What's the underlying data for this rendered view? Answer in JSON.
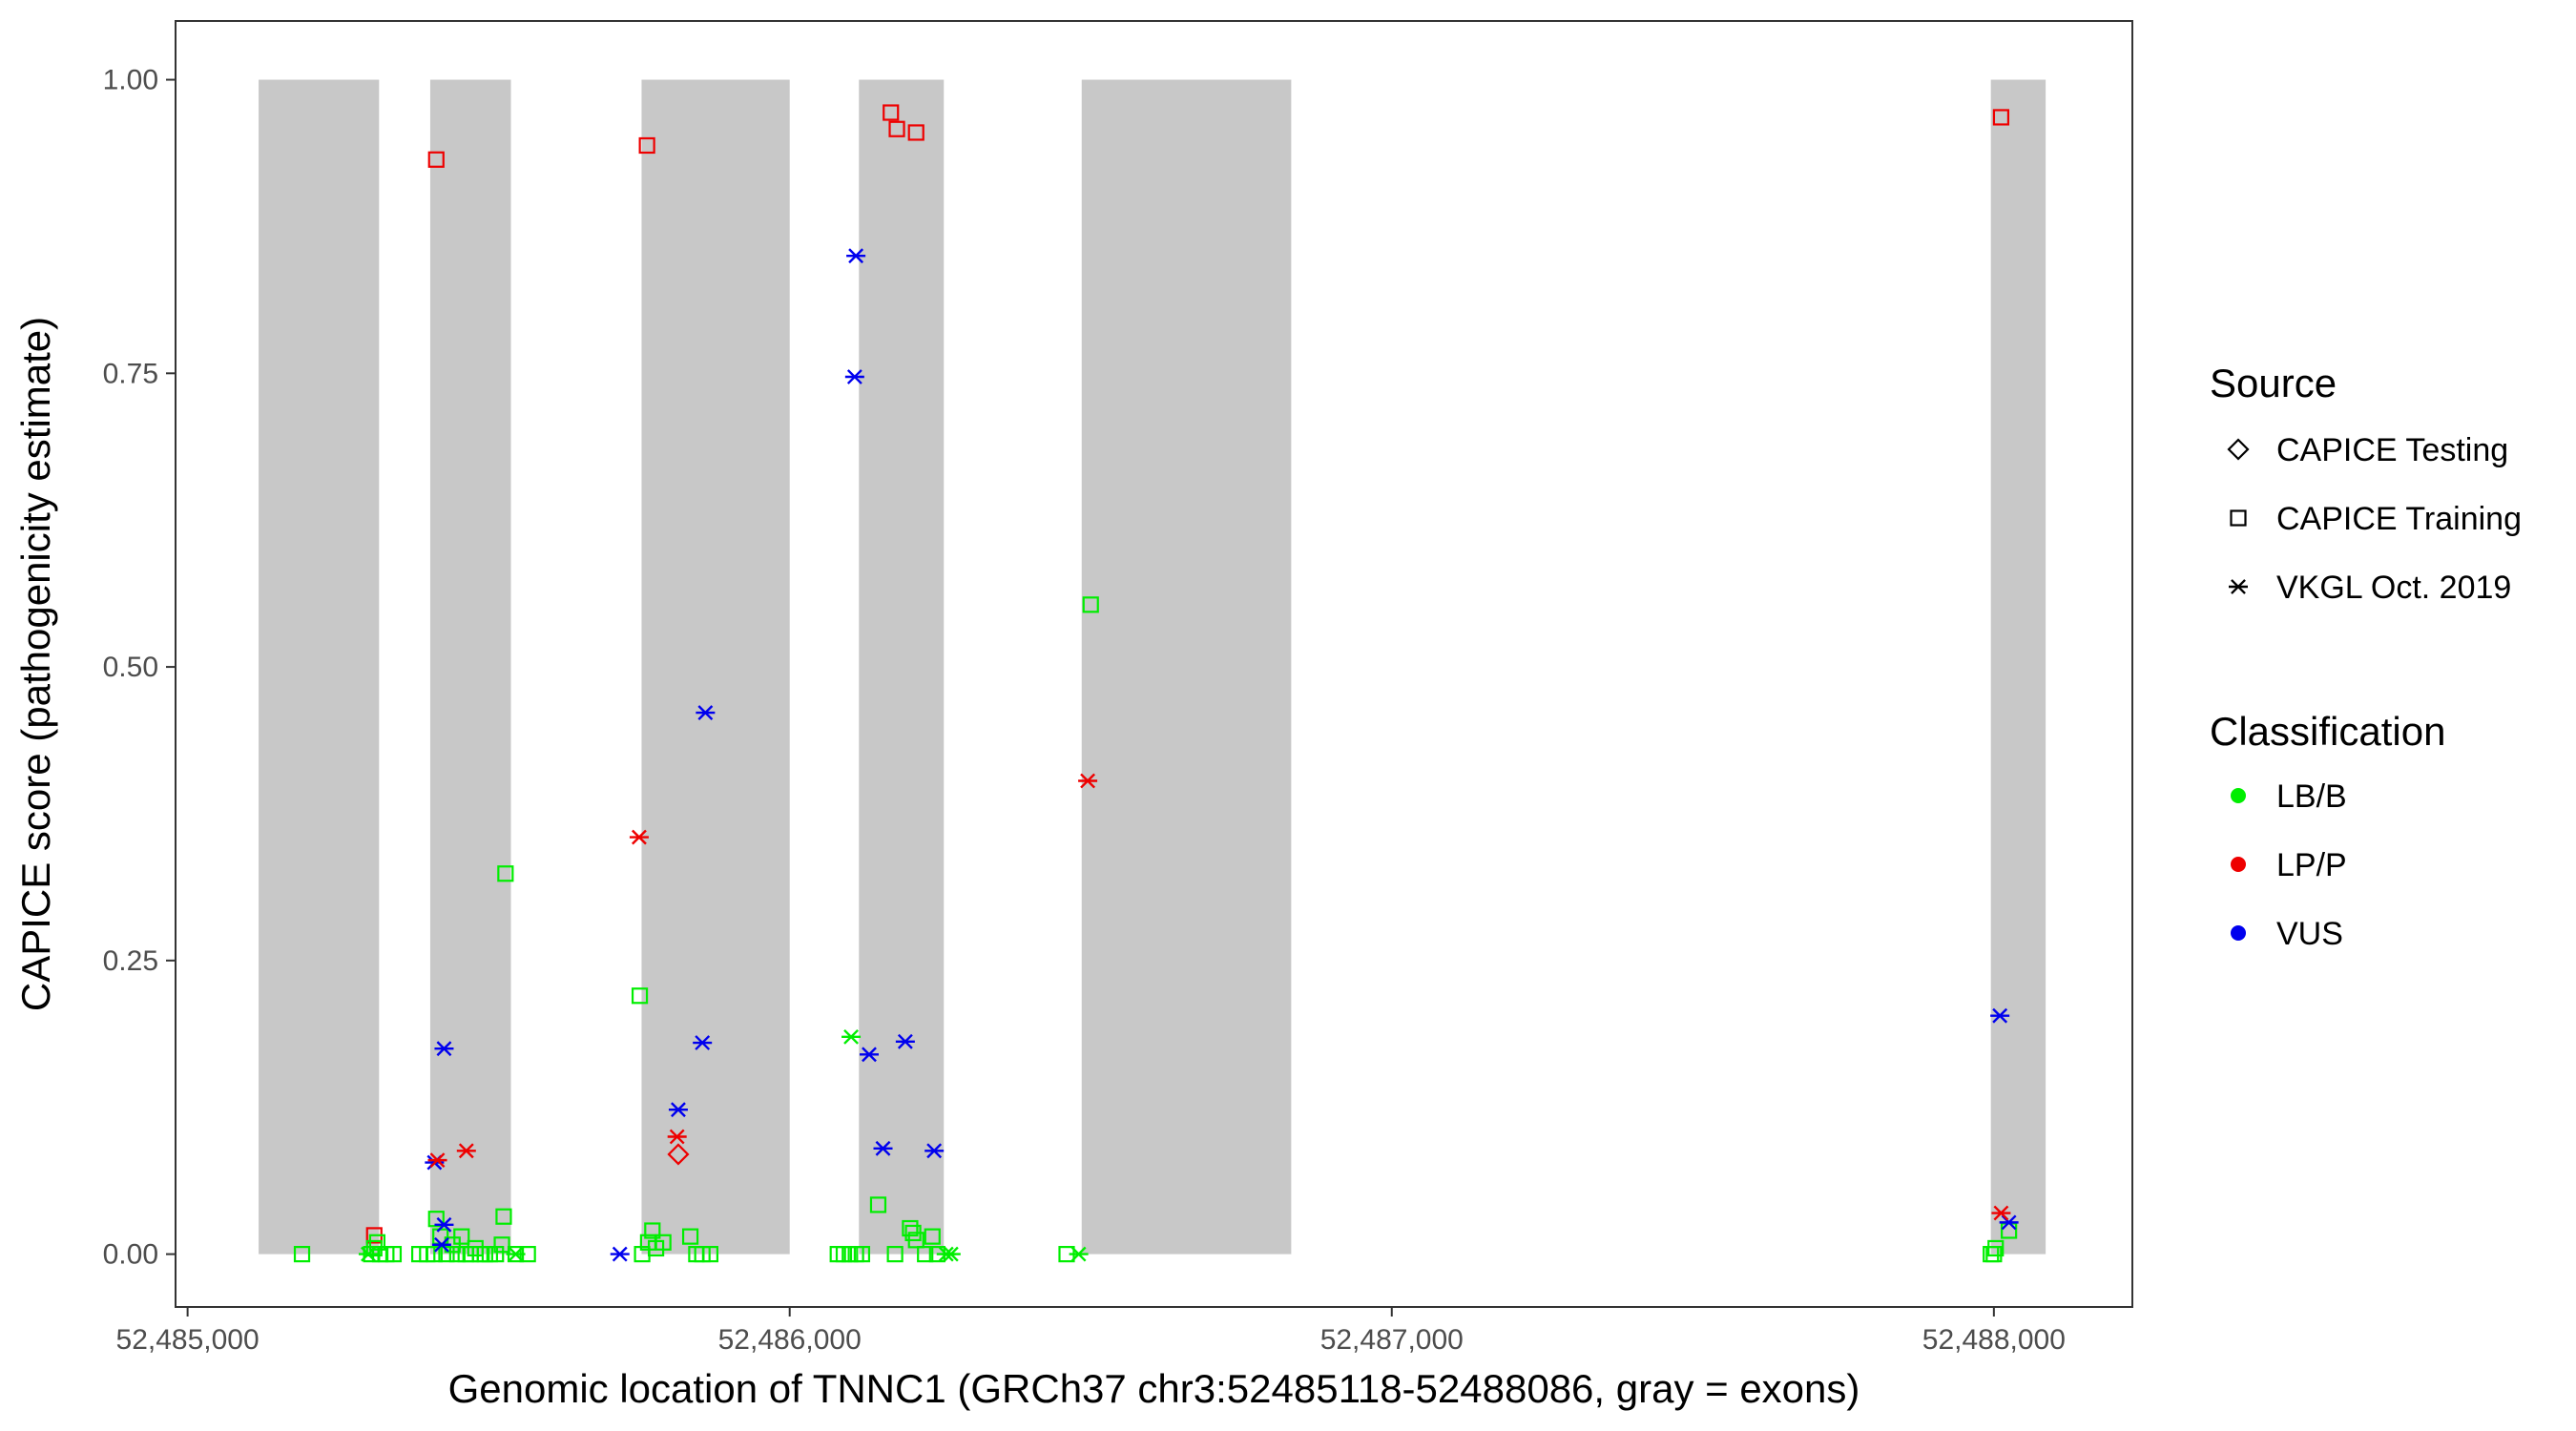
{
  "chart_data": {
    "type": "scatter",
    "title": "",
    "xlabel": "Genomic location of TNNC1 (GRCh37 chr3:52485118-52488086, gray = exons)",
    "ylabel": "CAPICE score (pathogenicity estimate)",
    "xlim": [
      52484980,
      52488230
    ],
    "ylim": [
      -0.045,
      1.05
    ],
    "x_ticks": [
      52485000,
      52486000,
      52487000,
      52488000
    ],
    "x_tick_labels": [
      "52,485,000",
      "52,486,000",
      "52,487,000",
      "52,488,000"
    ],
    "y_ticks": [
      0,
      0.25,
      0.5,
      0.75,
      1
    ],
    "y_tick_labels": [
      "0.00",
      "0.25",
      "0.50",
      "0.75",
      "1.00"
    ],
    "grid": false,
    "exons": [
      {
        "start": 52485118,
        "end": 52485318
      },
      {
        "start": 52485403,
        "end": 52485537
      },
      {
        "start": 52485754,
        "end": 52486000
      },
      {
        "start": 52486115,
        "end": 52486256
      },
      {
        "start": 52486485,
        "end": 52486833
      },
      {
        "start": 52487995,
        "end": 52488086
      }
    ],
    "exon_color": "#c8c8c8",
    "legend": {
      "position": "right",
      "source_title": "Source",
      "source_items": [
        {
          "label": "CAPICE Testing",
          "shape": "diamond"
        },
        {
          "label": "CAPICE Training",
          "shape": "square"
        },
        {
          "label": "VKGL Oct. 2019",
          "shape": "asterisk"
        }
      ],
      "class_title": "Classification",
      "class_items": [
        {
          "label": "LB/B",
          "color": "#00ee00"
        },
        {
          "label": "LP/P",
          "color": "#ee0000"
        },
        {
          "label": "VUS",
          "color": "#0000ee"
        }
      ]
    },
    "series": [
      {
        "source": "CAPICE Training",
        "classification": "LP/P",
        "points": [
          [
            52485413,
            0.932
          ],
          [
            52485763,
            0.944
          ],
          [
            52486168,
            0.972
          ],
          [
            52486178,
            0.958
          ],
          [
            52486210,
            0.955
          ],
          [
            52488012,
            0.968
          ],
          [
            52485310,
            0.016
          ]
        ]
      },
      {
        "source": "CAPICE Training",
        "classification": "LB/B",
        "points": [
          [
            52486500,
            0.553
          ],
          [
            52485528,
            0.324
          ],
          [
            52485751,
            0.22
          ],
          [
            52485525,
            0.032
          ],
          [
            52485413,
            0.03
          ],
          [
            52486147,
            0.042
          ],
          [
            52485190,
            0.0
          ],
          [
            52485305,
            0.0
          ],
          [
            52485310,
            0.005
          ],
          [
            52485315,
            0.01
          ],
          [
            52485320,
            0.0
          ],
          [
            52485330,
            0.0
          ],
          [
            52485342,
            0.0
          ],
          [
            52485385,
            0.0
          ],
          [
            52485398,
            0.0
          ],
          [
            52485410,
            0.0
          ],
          [
            52485420,
            0.015
          ],
          [
            52485430,
            0.0
          ],
          [
            52485440,
            0.008
          ],
          [
            52485448,
            0.0
          ],
          [
            52485455,
            0.015
          ],
          [
            52485462,
            0.0
          ],
          [
            52485470,
            0.0
          ],
          [
            52485478,
            0.005
          ],
          [
            52485486,
            0.0
          ],
          [
            52485494,
            0.0
          ],
          [
            52485502,
            0.0
          ],
          [
            52485512,
            0.0
          ],
          [
            52485522,
            0.008
          ],
          [
            52485545,
            0.0
          ],
          [
            52485565,
            0.0
          ],
          [
            52485755,
            0.0
          ],
          [
            52485765,
            0.01
          ],
          [
            52485772,
            0.02
          ],
          [
            52485778,
            0.005
          ],
          [
            52485790,
            0.01
          ],
          [
            52485835,
            0.015
          ],
          [
            52485845,
            0.0
          ],
          [
            52485855,
            0.0
          ],
          [
            52485868,
            0.0
          ],
          [
            52486080,
            0.0
          ],
          [
            52486090,
            0.0
          ],
          [
            52486100,
            0.0
          ],
          [
            52486110,
            0.0
          ],
          [
            52486120,
            0.0
          ],
          [
            52486175,
            0.0
          ],
          [
            52486200,
            0.022
          ],
          [
            52486205,
            0.018
          ],
          [
            52486210,
            0.012
          ],
          [
            52486225,
            0.0
          ],
          [
            52486237,
            0.015
          ],
          [
            52486245,
            0.0
          ],
          [
            52486460,
            0.0
          ],
          [
            52487995,
            0.0
          ],
          [
            52488000,
            0.0
          ],
          [
            52488003,
            0.005
          ],
          [
            52488025,
            0.02
          ]
        ]
      },
      {
        "source": "CAPICE Testing",
        "classification": "LP/P",
        "points": [
          [
            52485815,
            0.085
          ]
        ]
      },
      {
        "source": "VKGL Oct. 2019",
        "classification": "VUS",
        "points": [
          [
            52486110,
            0.85
          ],
          [
            52486108,
            0.747
          ],
          [
            52485860,
            0.461
          ],
          [
            52485855,
            0.18
          ],
          [
            52485426,
            0.175
          ],
          [
            52486192,
            0.181
          ],
          [
            52486132,
            0.17
          ],
          [
            52485815,
            0.123
          ],
          [
            52486155,
            0.09
          ],
          [
            52486240,
            0.088
          ],
          [
            52485410,
            0.078
          ],
          [
            52485426,
            0.025
          ],
          [
            52485422,
            0.008
          ],
          [
            52485718,
            0.0
          ],
          [
            52488010,
            0.203
          ],
          [
            52488025,
            0.027
          ]
        ]
      },
      {
        "source": "VKGL Oct. 2019",
        "classification": "LP/P",
        "points": [
          [
            52485750,
            0.355
          ],
          [
            52486495,
            0.403
          ],
          [
            52485463,
            0.088
          ],
          [
            52485415,
            0.08
          ],
          [
            52485813,
            0.1
          ],
          [
            52488012,
            0.035
          ]
        ]
      },
      {
        "source": "VKGL Oct. 2019",
        "classification": "LB/B",
        "points": [
          [
            52486102,
            0.185
          ],
          [
            52485545,
            0.0
          ],
          [
            52486260,
            0.0
          ],
          [
            52486268,
            0.0
          ],
          [
            52486480,
            0.0
          ],
          [
            52485300,
            0.0
          ]
        ]
      }
    ]
  }
}
